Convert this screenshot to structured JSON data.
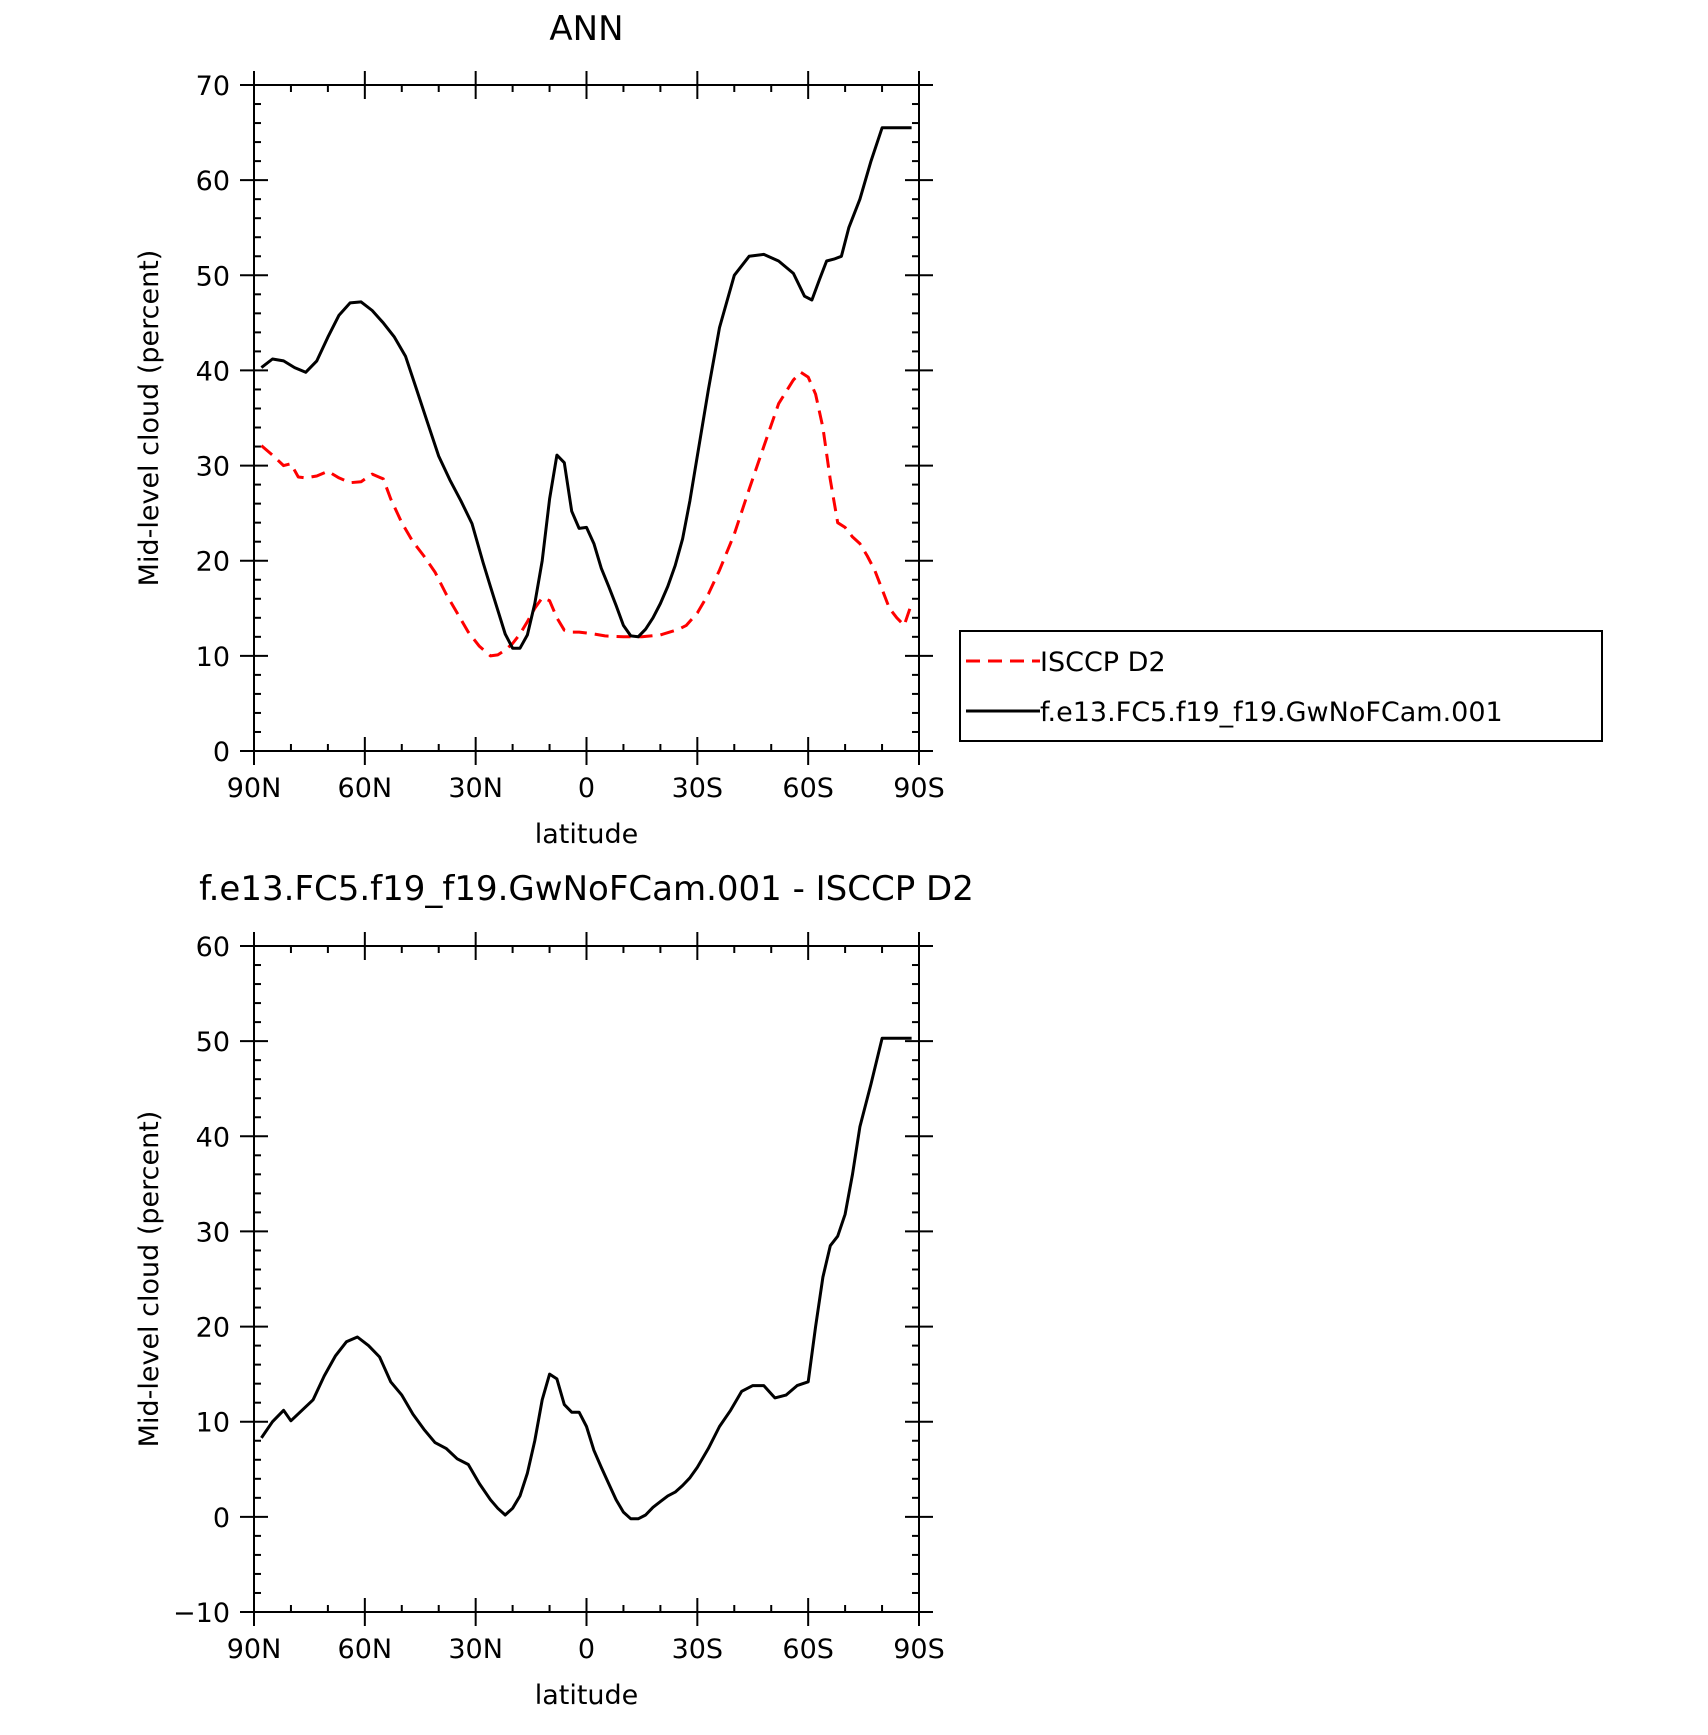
{
  "chart_data": [
    {
      "type": "line",
      "title": "ANN",
      "xlabel": "latitude",
      "ylabel": "Mid-level cloud (percent)",
      "xlim": [
        90,
        -90
      ],
      "ylim": [
        0,
        70
      ],
      "yticks": [
        0,
        10,
        20,
        30,
        40,
        50,
        60,
        70
      ],
      "xticks": [
        90,
        60,
        30,
        0,
        -30,
        -60,
        -90
      ],
      "xtick_labels": [
        "90N",
        "60N",
        "30N",
        "0",
        "30S",
        "60S",
        "90S"
      ],
      "grid": false,
      "legend": "right",
      "series": [
        {
          "name": "ISCCP D2",
          "color": "#ff0000",
          "dash": "dashed",
          "x": [
            88,
            85,
            82,
            80,
            78,
            76,
            73,
            70,
            67,
            64,
            61,
            58,
            55,
            53,
            50,
            47,
            44,
            41,
            38,
            35,
            32,
            29,
            26,
            24,
            22,
            20,
            18,
            16,
            14,
            12,
            10,
            8,
            6,
            4,
            2,
            0,
            -2,
            -5,
            -10,
            -15,
            -20,
            -25,
            -27,
            -30,
            -33,
            -36,
            -40,
            -44,
            -48,
            -52,
            -56,
            -58,
            -60,
            -62,
            -64,
            -66,
            -68,
            -70,
            -72,
            -74,
            -76,
            -78,
            -80,
            -82,
            -84,
            -86,
            -88
          ],
          "y": [
            32.1,
            31.1,
            30.0,
            30.2,
            28.8,
            28.7,
            28.9,
            29.4,
            28.7,
            28.2,
            28.3,
            29.1,
            28.6,
            26.5,
            24.0,
            22.0,
            20.5,
            18.8,
            16.5,
            14.5,
            12.5,
            11.0,
            10.0,
            10.1,
            10.6,
            11.3,
            12.3,
            13.6,
            15.0,
            16.1,
            15.8,
            14.0,
            12.7,
            12.5,
            12.5,
            12.4,
            12.3,
            12.1,
            12.0,
            12.0,
            12.2,
            12.8,
            13.2,
            14.5,
            16.5,
            19.0,
            22.8,
            27.5,
            32.0,
            36.5,
            39.0,
            39.8,
            39.3,
            37.5,
            34.0,
            28.5,
            24.0,
            23.5,
            22.5,
            21.8,
            20.5,
            19.0,
            17.0,
            15.0,
            14.0,
            13.2,
            15.5
          ],
          "x_is_exact": false
        },
        {
          "name": "f.e13.FC5.f19_f19.GwNoFCam.001",
          "color": "#000000",
          "dash": "solid",
          "x": [
            88,
            85,
            82,
            79,
            76,
            73,
            70,
            67,
            64,
            61,
            58,
            55,
            52,
            49,
            46,
            43,
            40,
            37,
            34,
            31,
            28,
            26,
            24,
            22,
            20,
            18,
            16,
            14,
            12,
            10,
            8,
            6,
            4,
            2,
            0,
            -2,
            -4,
            -6,
            -8,
            -10,
            -12,
            -14,
            -16,
            -18,
            -20,
            -22,
            -24,
            -26,
            -28,
            -30,
            -33,
            -36,
            -40,
            -44,
            -48,
            -52,
            -56,
            -59,
            -61,
            -63,
            -65,
            -67,
            -69,
            -71,
            -74,
            -77,
            -80,
            -83,
            -86,
            -88
          ],
          "y": [
            40.3,
            41.2,
            41.0,
            40.3,
            39.8,
            41.0,
            43.5,
            45.8,
            47.1,
            47.2,
            46.3,
            45.0,
            43.5,
            41.5,
            38.0,
            34.5,
            31.0,
            28.5,
            26.3,
            23.9,
            19.8,
            17.3,
            14.8,
            12.3,
            10.8,
            10.8,
            12.2,
            15.5,
            20.0,
            26.5,
            31.1,
            30.3,
            25.2,
            23.4,
            23.5,
            21.8,
            19.2,
            17.3,
            15.3,
            13.2,
            12.1,
            12.0,
            12.8,
            14.0,
            15.5,
            17.3,
            19.5,
            22.3,
            26.3,
            31.0,
            38.0,
            44.5,
            50.0,
            52.0,
            52.2,
            51.5,
            50.2,
            47.8,
            47.4,
            49.5,
            51.5,
            51.7,
            52.0,
            55.0,
            58.0,
            62.0,
            65.5,
            65.5,
            65.5,
            65.5
          ],
          "x_is_exact": false
        }
      ]
    },
    {
      "type": "line",
      "title": "f.e13.FC5.f19_f19.GwNoFCam.001 - ISCCP D2",
      "xlabel": "latitude",
      "ylabel": "Mid-level cloud (percent)",
      "xlim": [
        90,
        -90
      ],
      "ylim": [
        -10,
        60
      ],
      "yticks": [
        -10,
        0,
        10,
        20,
        30,
        40,
        50,
        60
      ],
      "xticks": [
        90,
        60,
        30,
        0,
        -30,
        -60,
        -90
      ],
      "xtick_labels": [
        "90N",
        "60N",
        "30N",
        "0",
        "30S",
        "60S",
        "90S"
      ],
      "grid": false,
      "series": [
        {
          "color": "#000000",
          "dash": "solid",
          "x": [
            88,
            85,
            82,
            80,
            77,
            74,
            71,
            68,
            65,
            62,
            59,
            56,
            53,
            50,
            47,
            44,
            41,
            38,
            35,
            32,
            29,
            26,
            24,
            22,
            20,
            18,
            16,
            14,
            12,
            10,
            8,
            6,
            4,
            2,
            0,
            -2,
            -4,
            -6,
            -8,
            -10,
            -12,
            -14,
            -16,
            -18,
            -20,
            -22,
            -24,
            -26,
            -28,
            -30,
            -33,
            -36,
            -39,
            -42,
            -45,
            -48,
            -51,
            -54,
            -57,
            -60,
            -62,
            -64,
            -66,
            -68,
            -70,
            -72,
            -74,
            -77,
            -80,
            -83,
            -86,
            -88
          ],
          "y": [
            8.3,
            10.0,
            11.2,
            10.1,
            11.2,
            12.3,
            14.8,
            16.9,
            18.4,
            18.9,
            18.0,
            16.8,
            14.2,
            12.8,
            10.8,
            9.2,
            7.8,
            7.2,
            6.1,
            5.5,
            3.5,
            1.8,
            0.9,
            0.2,
            0.9,
            2.2,
            4.6,
            8.0,
            12.3,
            15.0,
            14.5,
            11.8,
            11.0,
            11.0,
            9.5,
            7.0,
            5.2,
            3.5,
            1.8,
            0.5,
            -0.2,
            -0.2,
            0.2,
            1.0,
            1.6,
            2.2,
            2.6,
            3.3,
            4.1,
            5.2,
            7.2,
            9.5,
            11.2,
            13.2,
            13.8,
            13.8,
            12.5,
            12.8,
            13.8,
            14.2,
            20.0,
            25.2,
            28.5,
            29.5,
            31.8,
            36.0,
            41.0,
            45.5,
            50.3,
            50.3,
            50.3,
            50.3
          ],
          "x_is_exact": false
        }
      ]
    }
  ]
}
